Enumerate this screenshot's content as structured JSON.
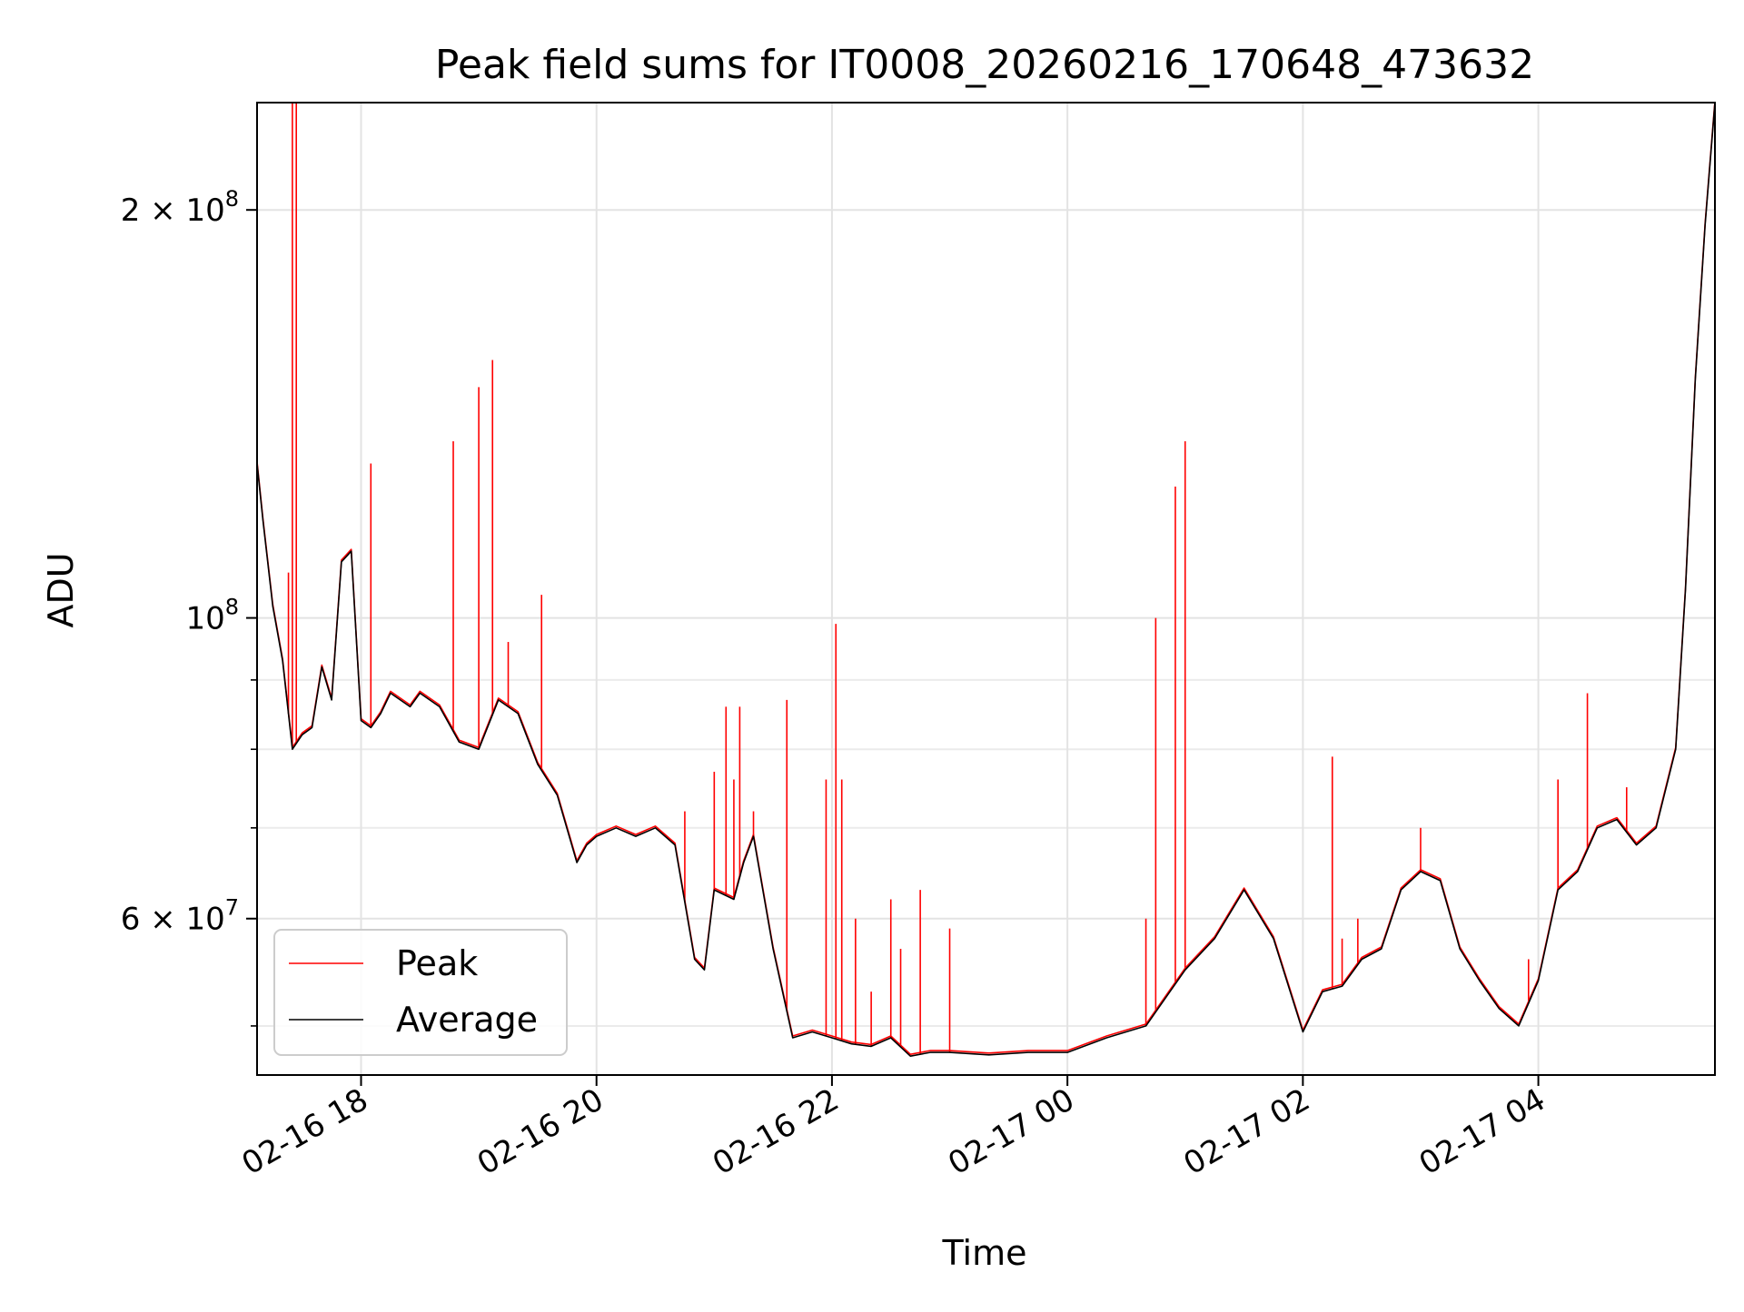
{
  "chart_data": {
    "type": "line",
    "title": "Peak field sums for IT0008_20260216_170648_473632",
    "xlabel": "Time",
    "ylabel": "ADU",
    "x_type": "datetime",
    "y_scale": "log",
    "xlim": [
      "2026-02-16 17:07",
      "2026-02-17 05:30"
    ],
    "ylim": [
      46000000,
      240000000
    ],
    "grid": true,
    "legend_position": "lower-left",
    "x_ticks": [
      {
        "value": "2026-02-16 18:00",
        "label": "02-16 18"
      },
      {
        "value": "2026-02-16 20:00",
        "label": "02-16 20"
      },
      {
        "value": "2026-02-16 22:00",
        "label": "02-16 22"
      },
      {
        "value": "2026-02-17 00:00",
        "label": "02-17 00"
      },
      {
        "value": "2026-02-17 02:00",
        "label": "02-17 02"
      },
      {
        "value": "2026-02-17 04:00",
        "label": "02-17 04"
      }
    ],
    "y_major_ticks": [
      {
        "value": 60000000,
        "mantissa": "6",
        "exp": "7"
      },
      {
        "value": 100000000,
        "mantissa": "",
        "exp": "8"
      },
      {
        "value": 200000000,
        "mantissa": "2",
        "exp": "8"
      }
    ],
    "y_minor_ticks": [
      50000000,
      70000000,
      80000000,
      90000000
    ],
    "average_series": {
      "name": "Average",
      "color": "#000000",
      "x": [
        "2026-02-16 17:07",
        "2026-02-16 17:10",
        "2026-02-16 17:15",
        "2026-02-16 17:20",
        "2026-02-16 17:25",
        "2026-02-16 17:30",
        "2026-02-16 17:35",
        "2026-02-16 17:40",
        "2026-02-16 17:45",
        "2026-02-16 17:50",
        "2026-02-16 17:55",
        "2026-02-16 18:00",
        "2026-02-16 18:05",
        "2026-02-16 18:10",
        "2026-02-16 18:15",
        "2026-02-16 18:20",
        "2026-02-16 18:25",
        "2026-02-16 18:30",
        "2026-02-16 18:40",
        "2026-02-16 18:50",
        "2026-02-16 19:00",
        "2026-02-16 19:10",
        "2026-02-16 19:20",
        "2026-02-16 19:30",
        "2026-02-16 19:40",
        "2026-02-16 19:50",
        "2026-02-16 19:55",
        "2026-02-16 20:00",
        "2026-02-16 20:10",
        "2026-02-16 20:20",
        "2026-02-16 20:30",
        "2026-02-16 20:40",
        "2026-02-16 20:50",
        "2026-02-16 20:55",
        "2026-02-16 21:00",
        "2026-02-16 21:10",
        "2026-02-16 21:15",
        "2026-02-16 21:20",
        "2026-02-16 21:30",
        "2026-02-16 21:40",
        "2026-02-16 21:50",
        "2026-02-16 22:00",
        "2026-02-16 22:10",
        "2026-02-16 22:20",
        "2026-02-16 22:30",
        "2026-02-16 22:40",
        "2026-02-16 22:50",
        "2026-02-16 23:00",
        "2026-02-16 23:20",
        "2026-02-16 23:40",
        "2026-02-17 00:00",
        "2026-02-17 00:20",
        "2026-02-17 00:40",
        "2026-02-17 01:00",
        "2026-02-17 01:15",
        "2026-02-17 01:30",
        "2026-02-17 01:45",
        "2026-02-17 02:00",
        "2026-02-17 02:10",
        "2026-02-17 02:20",
        "2026-02-17 02:30",
        "2026-02-17 02:40",
        "2026-02-17 02:50",
        "2026-02-17 03:00",
        "2026-02-17 03:10",
        "2026-02-17 03:20",
        "2026-02-17 03:30",
        "2026-02-17 03:40",
        "2026-02-17 03:50",
        "2026-02-17 04:00",
        "2026-02-17 04:10",
        "2026-02-17 04:20",
        "2026-02-17 04:30",
        "2026-02-17 04:40",
        "2026-02-17 04:50",
        "2026-02-17 05:00",
        "2026-02-17 05:10",
        "2026-02-17 05:15",
        "2026-02-17 05:20",
        "2026-02-17 05:25",
        "2026-02-17 05:30"
      ],
      "y": [
        130000000,
        118000000,
        102000000,
        93000000,
        80000000,
        82000000,
        83000000,
        92000000,
        87000000,
        110000000,
        112000000,
        84000000,
        83000000,
        85000000,
        88000000,
        87000000,
        86000000,
        88000000,
        86000000,
        81000000,
        80000000,
        87000000,
        85000000,
        78000000,
        74000000,
        66000000,
        68000000,
        69000000,
        70000000,
        69000000,
        70000000,
        68000000,
        56000000,
        55000000,
        63000000,
        62000000,
        66000000,
        69000000,
        57000000,
        49000000,
        49500000,
        49000000,
        48500000,
        48300000,
        49000000,
        47500000,
        47800000,
        47800000,
        47600000,
        47800000,
        47800000,
        49000000,
        50000000,
        55000000,
        58000000,
        63000000,
        58000000,
        49500000,
        53000000,
        53500000,
        56000000,
        57000000,
        63000000,
        65000000,
        64000000,
        57000000,
        54000000,
        51500000,
        50000000,
        54000000,
        63000000,
        65000000,
        70000000,
        71000000,
        68000000,
        70000000,
        80000000,
        105000000,
        150000000,
        195000000,
        240000000
      ]
    },
    "peak_series": {
      "name": "Peak",
      "color": "#ff0000",
      "spikes": [
        {
          "x": "2026-02-16 17:25",
          "y": 240000000
        },
        {
          "x": "2026-02-16 17:27",
          "y": 240000000
        },
        {
          "x": "2026-02-16 17:23",
          "y": 108000000
        },
        {
          "x": "2026-02-16 18:05",
          "y": 130000000
        },
        {
          "x": "2026-02-16 18:47",
          "y": 135000000
        },
        {
          "x": "2026-02-16 19:00",
          "y": 148000000
        },
        {
          "x": "2026-02-16 19:07",
          "y": 155000000
        },
        {
          "x": "2026-02-16 19:15",
          "y": 96000000
        },
        {
          "x": "2026-02-16 19:32",
          "y": 104000000
        },
        {
          "x": "2026-02-16 20:45",
          "y": 72000000
        },
        {
          "x": "2026-02-16 21:00",
          "y": 77000000
        },
        {
          "x": "2026-02-16 21:06",
          "y": 86000000
        },
        {
          "x": "2026-02-16 21:10",
          "y": 76000000
        },
        {
          "x": "2026-02-16 21:13",
          "y": 86000000
        },
        {
          "x": "2026-02-16 21:20",
          "y": 72000000
        },
        {
          "x": "2026-02-16 21:37",
          "y": 87000000
        },
        {
          "x": "2026-02-16 21:57",
          "y": 76000000
        },
        {
          "x": "2026-02-16 22:02",
          "y": 99000000
        },
        {
          "x": "2026-02-16 22:05",
          "y": 76000000
        },
        {
          "x": "2026-02-16 22:12",
          "y": 60000000
        },
        {
          "x": "2026-02-16 22:20",
          "y": 53000000
        },
        {
          "x": "2026-02-16 22:30",
          "y": 62000000
        },
        {
          "x": "2026-02-16 22:35",
          "y": 57000000
        },
        {
          "x": "2026-02-16 22:45",
          "y": 63000000
        },
        {
          "x": "2026-02-16 23:00",
          "y": 59000000
        },
        {
          "x": "2026-02-17 00:40",
          "y": 60000000
        },
        {
          "x": "2026-02-17 00:45",
          "y": 100000000
        },
        {
          "x": "2026-02-17 00:55",
          "y": 125000000
        },
        {
          "x": "2026-02-17 01:00",
          "y": 135000000
        },
        {
          "x": "2026-02-17 02:15",
          "y": 79000000
        },
        {
          "x": "2026-02-17 02:20",
          "y": 58000000
        },
        {
          "x": "2026-02-17 02:28",
          "y": 60000000
        },
        {
          "x": "2026-02-17 03:00",
          "y": 70000000
        },
        {
          "x": "2026-02-17 03:55",
          "y": 56000000
        },
        {
          "x": "2026-02-17 04:10",
          "y": 76000000
        },
        {
          "x": "2026-02-17 04:25",
          "y": 88000000
        },
        {
          "x": "2026-02-17 04:45",
          "y": 75000000
        }
      ]
    },
    "legend": [
      {
        "label": "Peak",
        "color": "#ff0000"
      },
      {
        "label": "Average",
        "color": "#000000"
      }
    ]
  }
}
